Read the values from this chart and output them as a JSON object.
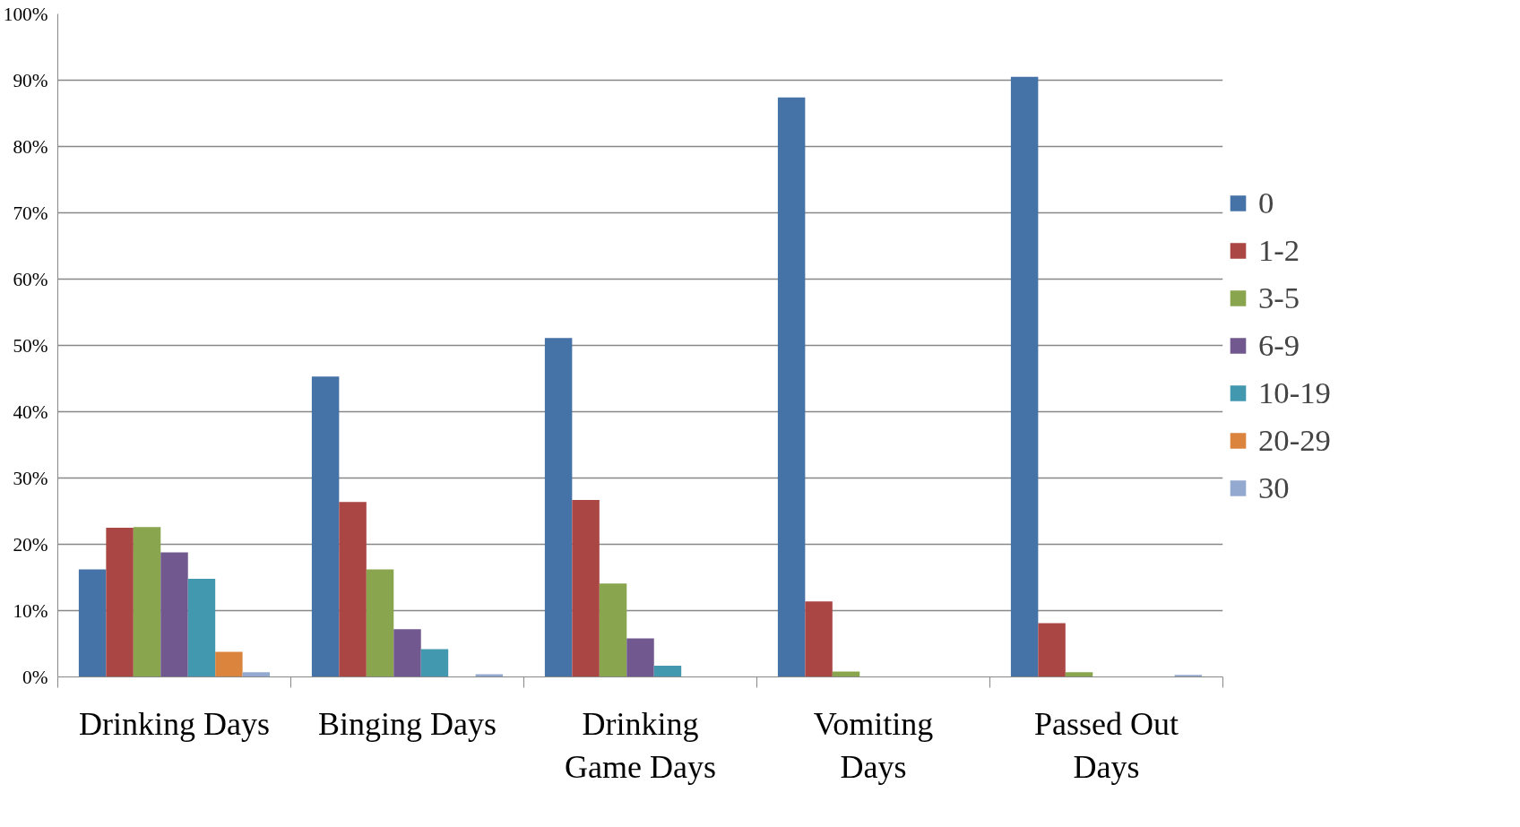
{
  "chart_data": {
    "type": "bar",
    "categories": [
      "Drinking Days",
      "Binging Days",
      "Drinking\nGame Days",
      "Vomiting\nDays",
      "Passed Out\nDays"
    ],
    "series": [
      {
        "name": "0",
        "color": "#4572a7",
        "values": [
          16.2,
          45.3,
          51.1,
          87.4,
          90.5
        ]
      },
      {
        "name": "1-2",
        "color": "#aa4643",
        "values": [
          22.5,
          26.4,
          26.7,
          11.4,
          8.1
        ]
      },
      {
        "name": "3-5",
        "color": "#89a54e",
        "values": [
          22.6,
          16.2,
          14.1,
          0.8,
          0.7
        ]
      },
      {
        "name": "6-9",
        "color": "#71588f",
        "values": [
          18.8,
          7.2,
          5.8,
          null,
          null
        ]
      },
      {
        "name": "10-19",
        "color": "#4198af",
        "values": [
          14.8,
          4.2,
          1.7,
          0,
          0
        ]
      },
      {
        "name": "20-29",
        "color": "#db843d",
        "values": [
          3.8,
          null,
          0,
          0,
          0
        ]
      },
      {
        "name": "30",
        "color": "#93a9cf",
        "values": [
          0.7,
          0.4,
          0,
          0,
          0.3
        ]
      }
    ],
    "ylim": [
      0,
      100
    ],
    "yticks": [
      {
        "value": 0,
        "label": "0%"
      },
      {
        "value": 10,
        "label": "10%"
      },
      {
        "value": 20,
        "label": "20%"
      },
      {
        "value": 30,
        "label": "30%"
      },
      {
        "value": 40,
        "label": "40%"
      },
      {
        "value": 50,
        "label": "50%"
      },
      {
        "value": 60,
        "label": "60%"
      },
      {
        "value": 70,
        "label": "70%"
      },
      {
        "value": 80,
        "label": "80%"
      },
      {
        "value": 90,
        "label": "90%"
      },
      {
        "value": 100,
        "label": "100%"
      }
    ],
    "grid": "y",
    "legend": "right"
  }
}
